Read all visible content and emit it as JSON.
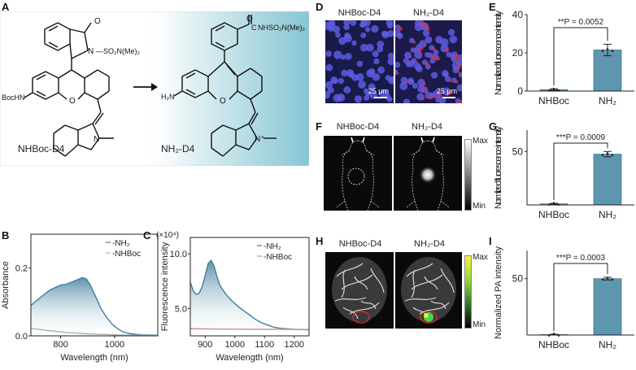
{
  "panel_a": {
    "letter": "A",
    "left_compound": "NHBoc-D4",
    "right_compound": "NH₂-D4",
    "left_groups": {
      "ketone": "O",
      "sulfonamide": "SO₂N(Me)₂",
      "n": "N",
      "boc": "BocHN",
      "o": "O",
      "n_indole": "N"
    },
    "right_groups": {
      "amide": "NHSO₂N(Me)₂",
      "c": "C",
      "o_carbonyl": "O",
      "amine": "H₂N",
      "o": "O",
      "n_indole": "N⁺"
    }
  },
  "panel_b": {
    "letter": "B"
  },
  "panel_c": {
    "letter": "C",
    "multiplier": "(×10⁴)"
  },
  "panel_d": {
    "letter": "D",
    "label_left": "NHBoc-D4",
    "label_right": "NH₂-D4",
    "scale_left": "25 μm",
    "scale_right": "25 μm"
  },
  "panel_f": {
    "letter": "F",
    "label_left": "NHBoc-D4",
    "label_right": "NH₂-D4",
    "cbar_max": "Max",
    "cbar_min": "Min"
  },
  "panel_h": {
    "letter": "H",
    "label_left": "NHBoc-D4",
    "label_right": "NH₂-D4",
    "cbar_max": "Max",
    "cbar_min": "Min"
  },
  "panel_e": {
    "letter": "E"
  },
  "panel_g": {
    "letter": "G"
  },
  "panel_i": {
    "letter": "I"
  },
  "chart_data": [
    {
      "id": "B",
      "type": "area",
      "xlabel": "Wavelength (nm)",
      "ylabel": "Absorbance",
      "xlim": [
        690,
        1160
      ],
      "ylim": [
        0,
        0.3
      ],
      "xticks": [
        800,
        1000
      ],
      "yticks": [
        0.0,
        0.2
      ],
      "legend_placement": "top-right",
      "series": [
        {
          "name": "-NH₂",
          "color": "#3f7e9c",
          "x": [
            690,
            720,
            760,
            800,
            820,
            840,
            860,
            880,
            895,
            910,
            930,
            950,
            970,
            990,
            1010,
            1030,
            1060,
            1100,
            1160
          ],
          "y": [
            0.09,
            0.11,
            0.135,
            0.15,
            0.152,
            0.158,
            0.165,
            0.172,
            0.168,
            0.15,
            0.115,
            0.08,
            0.055,
            0.035,
            0.022,
            0.012,
            0.006,
            0.003,
            0.002
          ]
        },
        {
          "name": "-NHBoc",
          "color": "#b0b0b0",
          "x": [
            690,
            760,
            820,
            900,
            1000,
            1160
          ],
          "y": [
            0.022,
            0.015,
            0.01,
            0.006,
            0.003,
            0.001
          ]
        }
      ]
    },
    {
      "id": "C",
      "type": "area",
      "xlabel": "Wavelength (nm)",
      "ylabel": "Fluorescence intensity",
      "xlim": [
        850,
        1250
      ],
      "ylim": [
        2.5,
        11.5
      ],
      "xticks": [
        900,
        1000,
        1100,
        1200
      ],
      "yticks": [
        5.0,
        10.0
      ],
      "ytick_labels": [
        "5.0",
        "10.0"
      ],
      "legend_placement": "top-right",
      "series": [
        {
          "name": "-NH₂",
          "color": "#3f7e9c",
          "x": [
            850,
            860,
            870,
            880,
            890,
            900,
            910,
            920,
            930,
            940,
            950,
            970,
            990,
            1010,
            1030,
            1050,
            1070,
            1090,
            1110,
            1130,
            1150,
            1170,
            1200,
            1250
          ],
          "y": [
            7.4,
            6.6,
            6.3,
            6.4,
            7.0,
            8.0,
            9.1,
            9.4,
            8.9,
            7.9,
            7.1,
            6.3,
            5.7,
            5.2,
            4.8,
            4.4,
            4.0,
            3.7,
            3.5,
            3.3,
            3.2,
            3.15,
            3.1,
            3.05
          ]
        },
        {
          "name": "-NHBoc",
          "color": "#c89090",
          "x": [
            850,
            950,
            1050,
            1150,
            1250
          ],
          "y": [
            3.15,
            3.12,
            3.1,
            3.1,
            3.08
          ]
        }
      ]
    },
    {
      "id": "E",
      "type": "bar",
      "ylabel": "Normalized fluorescence intensity",
      "categories": [
        "NHBoc",
        "NH₂"
      ],
      "values": [
        0.8,
        21.5
      ],
      "errors": [
        0.4,
        3.0
      ],
      "ylim": [
        0,
        40
      ],
      "yticks": [
        0,
        20,
        40
      ],
      "ytick_labels": [
        "0",
        "20",
        "40"
      ],
      "annotation": "**P = 0.0052",
      "color": "#5e96b0"
    },
    {
      "id": "G",
      "type": "bar",
      "ylabel": "Normlized fluorescence intensity",
      "categories": [
        "NHBoc",
        "NH₂"
      ],
      "values": [
        1,
        47.5
      ],
      "errors": [
        0.5,
        2.5
      ],
      "ylim": [
        0,
        70
      ],
      "yticks": [
        50
      ],
      "ytick_labels": [
        "50"
      ],
      "annotation": "***P = 0.0009",
      "color": "#5e96b0"
    },
    {
      "id": "I",
      "type": "bar",
      "ylabel": "Normalized PA intensity",
      "categories": [
        "NHBoc",
        "NH₂"
      ],
      "values": [
        0.4,
        50
      ],
      "errors": [
        0.3,
        1.2
      ],
      "ylim": [
        0,
        75
      ],
      "yticks": [
        50
      ],
      "ytick_labels": [
        "50"
      ],
      "annotation": "***P = 0.0003",
      "color": "#5e96b0"
    }
  ]
}
